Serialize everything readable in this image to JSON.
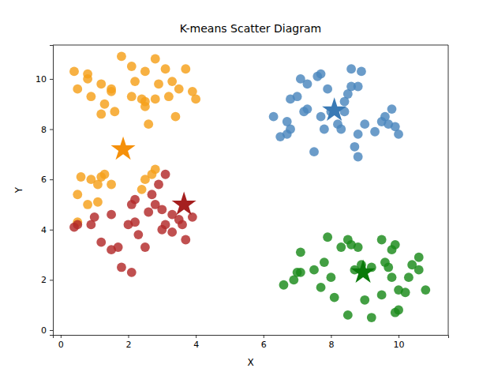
{
  "chart_data": {
    "type": "scatter",
    "title": "K-means Scatter Diagram",
    "x_label": "X",
    "y_label": "Y",
    "xlim": [
      -0.23,
      11.47
    ],
    "ylim": [
      -0.19,
      11.35
    ],
    "xticks": [
      0,
      2,
      4,
      6,
      8,
      10
    ],
    "yticks": [
      0,
      2,
      4,
      6,
      8,
      10
    ],
    "grid": false,
    "series": [
      {
        "color": "#f5a01a",
        "marker": "circle",
        "x": [
          0.4,
          0.5,
          0.8,
          0.8,
          0.9,
          1.2,
          1.3,
          1.2,
          1.5,
          1.5,
          1.6,
          1.8,
          2.1,
          2.2,
          2.1,
          2.4,
          2.5,
          2.5,
          2.6,
          2.5,
          2.8,
          2.9,
          2.8,
          3.1,
          3.3,
          3.4,
          3.5,
          3.7,
          3.9,
          4.0,
          3.2,
          0.5,
          0.5,
          0.6,
          0.8,
          0.9,
          1.1,
          1.1,
          1.2,
          1.3,
          1.5,
          2.4,
          2.5,
          2.7,
          2.8
        ],
        "values": [
          10.3,
          9.6,
          10.2,
          10.0,
          9.3,
          9.8,
          9.0,
          8.6,
          9.6,
          9.5,
          8.7,
          10.9,
          10.5,
          9.9,
          9.3,
          9.2,
          10.3,
          8.9,
          8.2,
          9.1,
          10.8,
          9.8,
          9.2,
          10.4,
          9.9,
          8.5,
          9.6,
          10.4,
          9.5,
          9.2,
          9.3,
          4.3,
          5.4,
          6.1,
          5.0,
          6.0,
          5.8,
          5.1,
          6.1,
          6.2,
          5.8,
          5.6,
          6.0,
          6.2,
          6.4
        ]
      },
      {
        "color": "#b22a2a",
        "marker": "circle",
        "x": [
          0.4,
          0.5,
          0.9,
          1.0,
          1.2,
          1.5,
          1.5,
          1.7,
          1.8,
          2.0,
          2.1,
          2.1,
          2.2,
          2.3,
          2.2,
          2.5,
          2.6,
          2.7,
          2.9,
          3.0,
          3.1,
          3.1,
          3.3,
          3.3,
          3.5,
          3.6,
          3.7,
          3.9,
          3.0,
          2.8
        ],
        "values": [
          4.1,
          4.2,
          4.2,
          4.5,
          3.5,
          3.2,
          4.6,
          3.3,
          2.5,
          4.2,
          2.3,
          5.0,
          5.2,
          3.8,
          4.3,
          3.3,
          4.7,
          5.4,
          5.8,
          4.8,
          6.2,
          4.2,
          4.6,
          3.9,
          4.4,
          4.2,
          3.6,
          4.5,
          4.0,
          5.0
        ]
      },
      {
        "color": "#4a86bd",
        "marker": "circle",
        "x": [
          6.3,
          6.5,
          6.7,
          6.7,
          6.8,
          6.8,
          7.0,
          7.1,
          7.2,
          7.3,
          7.3,
          7.5,
          7.6,
          7.7,
          7.7,
          7.8,
          7.9,
          8.0,
          8.2,
          8.3,
          8.4,
          8.5,
          8.6,
          8.6,
          8.7,
          8.8,
          8.8,
          8.8,
          8.9,
          9.0,
          9.3,
          9.5,
          9.6,
          9.7,
          9.8,
          9.9,
          10.0,
          8.4
        ],
        "values": [
          8.5,
          7.7,
          7.8,
          8.3,
          8.0,
          9.2,
          9.3,
          10.0,
          8.7,
          8.8,
          9.8,
          7.1,
          10.1,
          10.2,
          8.5,
          8.0,
          9.6,
          8.7,
          8.2,
          8.0,
          8.7,
          9.4,
          10.4,
          9.7,
          7.3,
          6.9,
          7.8,
          9.7,
          10.3,
          8.2,
          7.9,
          8.3,
          8.5,
          8.2,
          8.8,
          8.1,
          7.8,
          9.1
        ]
      },
      {
        "color": "#1a8a1a",
        "marker": "circle",
        "x": [
          6.6,
          6.9,
          7.0,
          7.1,
          7.1,
          7.5,
          7.7,
          7.8,
          7.9,
          8.0,
          8.1,
          8.3,
          8.5,
          8.5,
          8.6,
          8.8,
          8.9,
          9.0,
          9.2,
          9.2,
          9.5,
          9.5,
          9.6,
          9.7,
          9.8,
          9.8,
          9.9,
          9.9,
          10.0,
          10.0,
          10.2,
          10.3,
          10.4,
          10.6,
          10.6,
          10.8,
          8.7
        ],
        "values": [
          1.8,
          2.0,
          2.3,
          3.1,
          2.3,
          2.4,
          1.7,
          2.7,
          3.7,
          2.1,
          1.3,
          3.3,
          0.6,
          3.6,
          3.4,
          3.3,
          2.6,
          1.2,
          0.5,
          2.5,
          3.6,
          1.4,
          2.7,
          2.5,
          2.1,
          3.2,
          3.4,
          0.7,
          0.8,
          1.6,
          1.5,
          2.1,
          2.6,
          2.9,
          2.4,
          1.6,
          2.4
        ]
      },
      {
        "color": "#f5900a",
        "marker": "star",
        "x": [
          1.85
        ],
        "values": [
          7.2
        ]
      },
      {
        "color": "#a51f1f",
        "marker": "star",
        "x": [
          3.65
        ],
        "values": [
          5.0
        ]
      },
      {
        "color": "#3a7ab5",
        "marker": "star",
        "x": [
          8.1
        ],
        "values": [
          8.75
        ]
      },
      {
        "color": "#0a7a0a",
        "marker": "star",
        "x": [
          8.95
        ],
        "values": [
          2.3
        ]
      }
    ]
  }
}
